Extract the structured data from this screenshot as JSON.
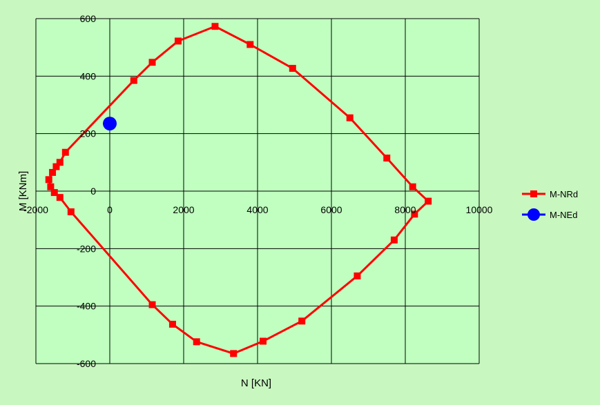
{
  "chart_data": {
    "type": "line",
    "title": "",
    "xlabel": "N [KN]",
    "ylabel": "M [KNm]",
    "xlim": [
      -2000,
      10000
    ],
    "ylim": [
      -600,
      600
    ],
    "xticks": [
      -2000,
      0,
      2000,
      4000,
      6000,
      8000,
      10000
    ],
    "yticks": [
      -600,
      -400,
      -200,
      0,
      200,
      400,
      600
    ],
    "x_tick_labels": [
      "-2000",
      "0",
      "2000",
      "4000",
      "6000",
      "8000",
      "10000"
    ],
    "y_tick_labels": [
      "-600",
      "-400",
      "-200",
      "0",
      "200",
      "400",
      "600"
    ],
    "grid": true,
    "legend_position": "right",
    "colors": {
      "background": "#c8f7c0",
      "plot_area": "#c0ffc0",
      "grid": "#000000"
    },
    "series": [
      {
        "name": "M-NRd",
        "color": "#ff0000",
        "marker": "square",
        "closed": true,
        "points": [
          [
            2850,
            573
          ],
          [
            3800,
            510
          ],
          [
            4950,
            427
          ],
          [
            6500,
            255
          ],
          [
            7500,
            115
          ],
          [
            8200,
            15
          ],
          [
            8620,
            -35
          ],
          [
            8250,
            -80
          ],
          [
            7700,
            -170
          ],
          [
            6700,
            -295
          ],
          [
            5200,
            -452
          ],
          [
            4150,
            -522
          ],
          [
            3350,
            -565
          ],
          [
            2350,
            -524
          ],
          [
            1700,
            -463
          ],
          [
            1150,
            -395
          ],
          [
            -1050,
            -72
          ],
          [
            -1350,
            -22
          ],
          [
            -1500,
            -5
          ],
          [
            -1600,
            15
          ],
          [
            -1650,
            40
          ],
          [
            -1550,
            65
          ],
          [
            -1450,
            85
          ],
          [
            -1350,
            100
          ],
          [
            -1200,
            135
          ],
          [
            650,
            385
          ],
          [
            1150,
            448
          ],
          [
            1850,
            522
          ]
        ]
      },
      {
        "name": "M-NEd",
        "color": "#0000ff",
        "marker": "circle",
        "closed": false,
        "points": [
          [
            0,
            235
          ]
        ]
      }
    ]
  }
}
